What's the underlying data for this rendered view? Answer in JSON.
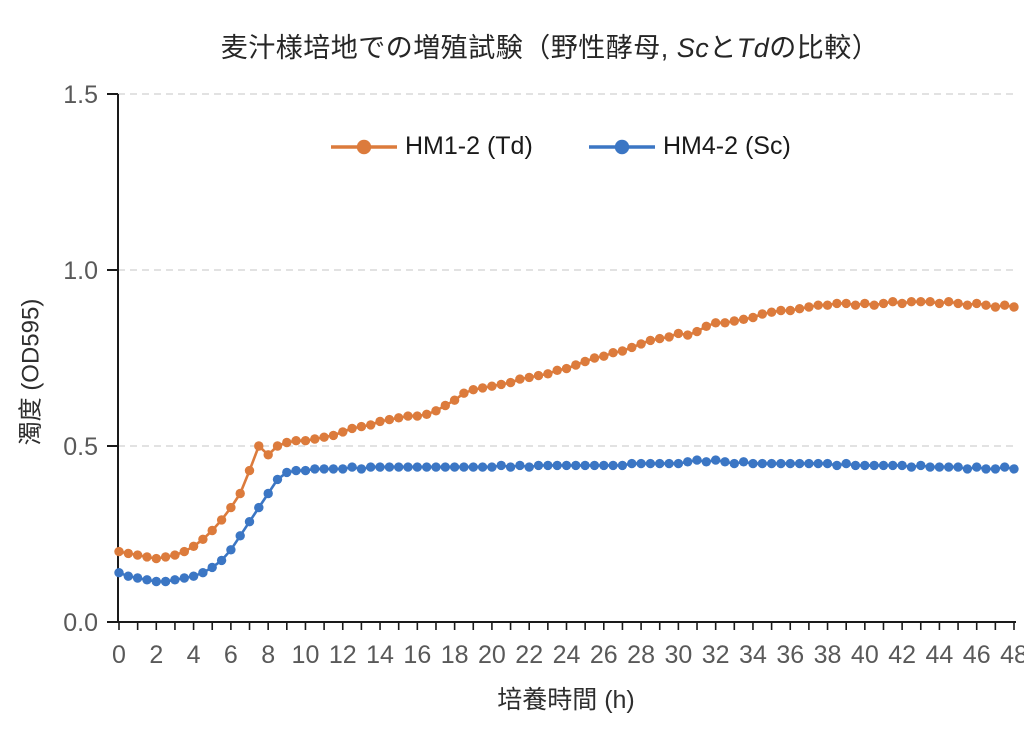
{
  "title": {
    "prefix": "麦汁様培地での増殖試験（野性酵母, ",
    "species1": "Sc",
    "connector": "と",
    "species2": "Td",
    "suffix": "の比較）"
  },
  "legend": [
    {
      "label": "HM1-2 (Td)",
      "color": "#DC7B3C"
    },
    {
      "label": "HM4-2 (Sc)",
      "color": "#3B76C4"
    }
  ],
  "colors": {
    "series_orange": "#DC7B3C",
    "series_blue": "#3B76C4",
    "gridline": "#D9D9D9",
    "axis": "#1a1a1a",
    "tick_label": "#595959"
  },
  "chart_data": {
    "type": "line",
    "title": "麦汁様培地での増殖試験（野性酵母, ScとTdの比較）",
    "xlabel": "培養時間 (h)",
    "ylabel": "濁度 (OD595)",
    "xlim": [
      0,
      48
    ],
    "ylim": [
      0,
      1.5
    ],
    "x_start": 0,
    "x_step": 0.5,
    "x_ticks": [
      0,
      2,
      4,
      6,
      8,
      10,
      12,
      14,
      16,
      18,
      20,
      22,
      24,
      26,
      28,
      30,
      32,
      34,
      36,
      38,
      40,
      42,
      44,
      46,
      48
    ],
    "x_minor_tick_step": 1,
    "y_tick_labels": [
      "0.0",
      "0.5",
      "1.0",
      "1.5"
    ],
    "y_tick_values": [
      0,
      0.5,
      1.0,
      1.5
    ],
    "grid": "horizontal-dashed",
    "legend_position": "top-inside",
    "series": [
      {
        "name": "HM1-2 (Td)",
        "color": "#DC7B3C",
        "values": [
          0.2,
          0.195,
          0.19,
          0.185,
          0.18,
          0.185,
          0.19,
          0.2,
          0.215,
          0.235,
          0.26,
          0.29,
          0.325,
          0.365,
          0.43,
          0.5,
          0.475,
          0.5,
          0.51,
          0.515,
          0.515,
          0.52,
          0.525,
          0.53,
          0.54,
          0.55,
          0.555,
          0.56,
          0.57,
          0.575,
          0.58,
          0.585,
          0.585,
          0.59,
          0.6,
          0.615,
          0.63,
          0.65,
          0.66,
          0.665,
          0.67,
          0.675,
          0.68,
          0.69,
          0.695,
          0.7,
          0.705,
          0.715,
          0.72,
          0.73,
          0.74,
          0.75,
          0.755,
          0.765,
          0.77,
          0.78,
          0.79,
          0.8,
          0.805,
          0.81,
          0.82,
          0.815,
          0.825,
          0.84,
          0.85,
          0.85,
          0.855,
          0.86,
          0.865,
          0.875,
          0.88,
          0.885,
          0.885,
          0.89,
          0.895,
          0.9,
          0.9,
          0.905,
          0.905,
          0.9,
          0.905,
          0.9,
          0.905,
          0.91,
          0.905,
          0.91,
          0.91,
          0.91,
          0.905,
          0.91,
          0.905,
          0.9,
          0.905,
          0.9,
          0.895,
          0.9,
          0.895
        ]
      },
      {
        "name": "HM4-2 (Sc)",
        "color": "#3B76C4",
        "values": [
          0.14,
          0.13,
          0.125,
          0.12,
          0.115,
          0.115,
          0.12,
          0.125,
          0.13,
          0.14,
          0.155,
          0.175,
          0.205,
          0.245,
          0.285,
          0.325,
          0.365,
          0.405,
          0.425,
          0.43,
          0.43,
          0.435,
          0.435,
          0.435,
          0.435,
          0.44,
          0.435,
          0.44,
          0.44,
          0.44,
          0.44,
          0.44,
          0.44,
          0.44,
          0.44,
          0.44,
          0.44,
          0.44,
          0.44,
          0.44,
          0.44,
          0.445,
          0.44,
          0.445,
          0.44,
          0.445,
          0.445,
          0.445,
          0.445,
          0.445,
          0.445,
          0.445,
          0.445,
          0.445,
          0.445,
          0.45,
          0.45,
          0.45,
          0.45,
          0.45,
          0.45,
          0.455,
          0.46,
          0.455,
          0.46,
          0.455,
          0.45,
          0.455,
          0.45,
          0.45,
          0.45,
          0.45,
          0.45,
          0.45,
          0.45,
          0.45,
          0.45,
          0.445,
          0.45,
          0.445,
          0.445,
          0.445,
          0.445,
          0.445,
          0.445,
          0.44,
          0.445,
          0.44,
          0.44,
          0.44,
          0.44,
          0.435,
          0.44,
          0.435,
          0.435,
          0.44,
          0.435
        ]
      }
    ]
  }
}
